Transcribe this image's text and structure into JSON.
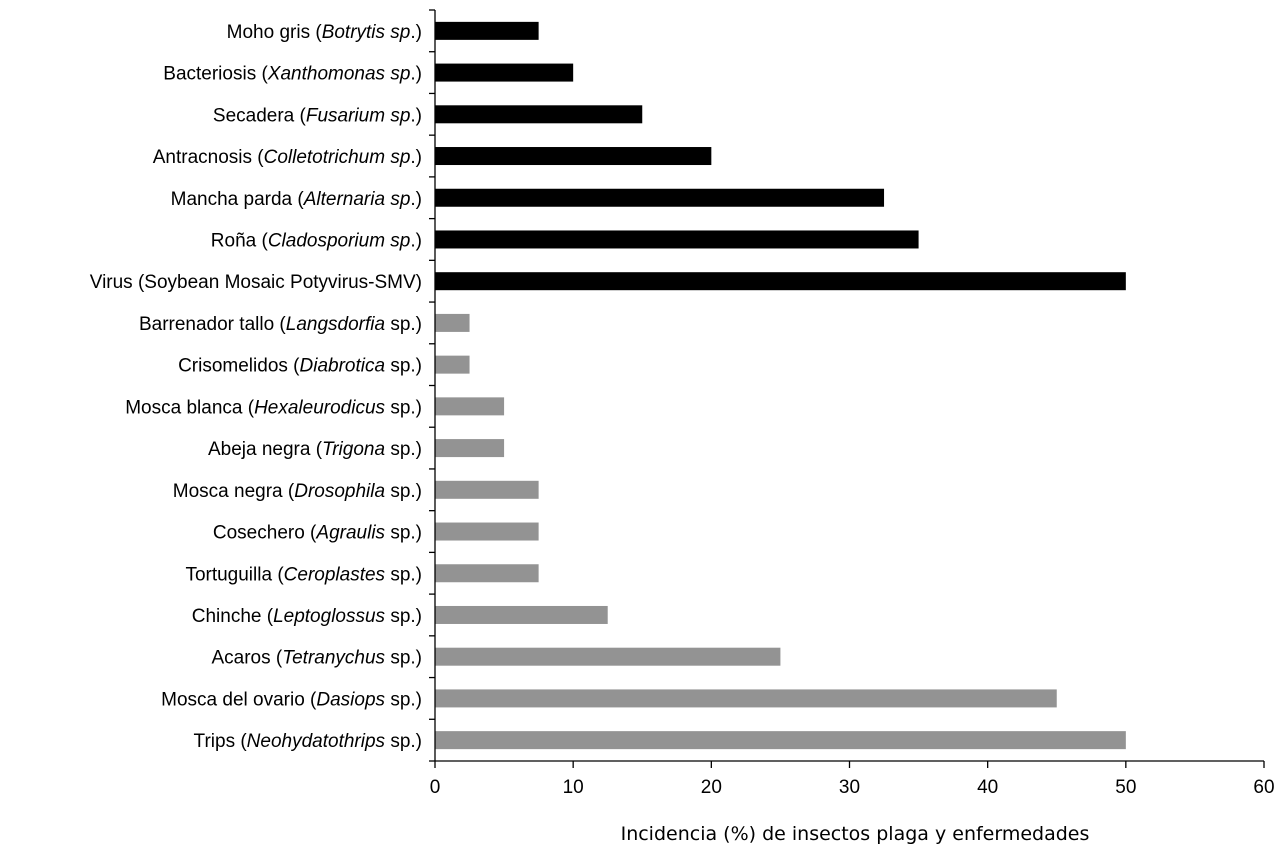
{
  "chart_data": {
    "type": "bar",
    "orientation": "horizontal",
    "title": "",
    "xlabel": "Incidencia (%) de insectos plaga y enfermedades",
    "ylabel": "",
    "xlim": [
      0,
      60
    ],
    "xticks": [
      "0",
      "10",
      "20",
      "30",
      "40",
      "50",
      "60"
    ],
    "grid": false,
    "legend": "none",
    "categories": [
      {
        "parts": [
          {
            "t": "Moho gris ("
          },
          {
            "t": "Botrytis sp",
            "i": true
          },
          {
            "t": ".)"
          }
        ]
      },
      {
        "parts": [
          {
            "t": "Bacteriosis ("
          },
          {
            "t": "Xanthomonas sp",
            "i": true
          },
          {
            "t": ".)"
          }
        ]
      },
      {
        "parts": [
          {
            "t": "Secadera ("
          },
          {
            "t": "Fusarium sp",
            "i": true
          },
          {
            "t": ".)"
          }
        ]
      },
      {
        "parts": [
          {
            "t": "Antracnosis ("
          },
          {
            "t": "Colletotrichum sp",
            "i": true
          },
          {
            "t": ".)"
          }
        ]
      },
      {
        "parts": [
          {
            "t": "Mancha parda ("
          },
          {
            "t": "Alternaria sp",
            "i": true
          },
          {
            "t": ".)"
          }
        ]
      },
      {
        "parts": [
          {
            "t": "Roña ("
          },
          {
            "t": "Cladosporium sp",
            "i": true
          },
          {
            "t": ".)"
          }
        ]
      },
      {
        "parts": [
          {
            "t": "Virus (Soybean Mosaic Potyvirus-SMV)"
          }
        ]
      },
      {
        "parts": [
          {
            "t": "Barrenador tallo ("
          },
          {
            "t": "Langsdorfia",
            "i": true
          },
          {
            "t": " sp.)"
          }
        ]
      },
      {
        "parts": [
          {
            "t": "Crisomelidos ("
          },
          {
            "t": "Diabrotica",
            "i": true
          },
          {
            "t": " sp.)"
          }
        ]
      },
      {
        "parts": [
          {
            "t": "Mosca blanca ("
          },
          {
            "t": "Hexaleurodicus",
            "i": true
          },
          {
            "t": " sp.)"
          }
        ]
      },
      {
        "parts": [
          {
            "t": "Abeja negra ("
          },
          {
            "t": "Trigona",
            "i": true
          },
          {
            "t": " sp.)"
          }
        ]
      },
      {
        "parts": [
          {
            "t": "Mosca negra ("
          },
          {
            "t": "Drosophila",
            "i": true
          },
          {
            "t": " sp.)"
          }
        ]
      },
      {
        "parts": [
          {
            "t": "Cosechero ("
          },
          {
            "t": "Agraulis",
            "i": true
          },
          {
            "t": " sp.)"
          }
        ]
      },
      {
        "parts": [
          {
            "t": "Tortuguilla ("
          },
          {
            "t": "Ceroplastes",
            "i": true
          },
          {
            "t": " sp.)"
          }
        ]
      },
      {
        "parts": [
          {
            "t": "Chinche ("
          },
          {
            "t": "Leptoglossus",
            "i": true
          },
          {
            "t": " sp.)"
          }
        ]
      },
      {
        "parts": [
          {
            "t": "Acaros ("
          },
          {
            "t": "Tetranychus",
            "i": true
          },
          {
            "t": " sp.)"
          }
        ]
      },
      {
        "parts": [
          {
            "t": "Mosca del ovario ("
          },
          {
            "t": "Dasiops",
            "i": true
          },
          {
            "t": " sp.)"
          }
        ]
      },
      {
        "parts": [
          {
            "t": "Trips ("
          },
          {
            "t": "Neohydatothrips",
            "i": true
          },
          {
            "t": " sp.)"
          }
        ]
      }
    ],
    "values": [
      7.5,
      10,
      15,
      20,
      32.5,
      35,
      50,
      2.5,
      2.5,
      5,
      5,
      7.5,
      7.5,
      7.5,
      12.5,
      25,
      45,
      50
    ],
    "colors": [
      "#000000",
      "#000000",
      "#000000",
      "#000000",
      "#000000",
      "#000000",
      "#000000",
      "#939393",
      "#939393",
      "#939393",
      "#939393",
      "#939393",
      "#939393",
      "#939393",
      "#939393",
      "#939393",
      "#939393",
      "#939393"
    ]
  }
}
